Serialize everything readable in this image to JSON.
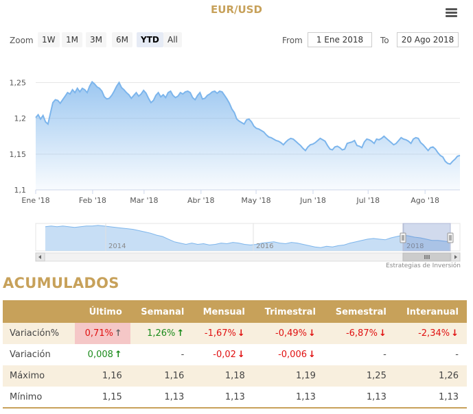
{
  "title": "EUR/USD",
  "icons": {
    "menu": "hamburger-menu-icon"
  },
  "zoom": {
    "label": "Zoom",
    "buttons": [
      {
        "label": "1W",
        "active": false
      },
      {
        "label": "1M",
        "active": false
      },
      {
        "label": "3M",
        "active": false
      },
      {
        "label": "6M",
        "active": false
      },
      {
        "label": "YTD",
        "active": true
      },
      {
        "label": "All",
        "active": false
      }
    ]
  },
  "range": {
    "from_label": "From",
    "from_value": "1 Ene 2018",
    "to_label": "To",
    "to_value": "20 Ago 2018"
  },
  "credit": "Estrategias de Inversión",
  "chart_data": {
    "type": "area",
    "series": [
      {
        "values": [
          1.201,
          1.205,
          1.199,
          1.204,
          1.195,
          1.192,
          1.207,
          1.222,
          1.226,
          1.225,
          1.221,
          1.226,
          1.231,
          1.236,
          1.234,
          1.24,
          1.236,
          1.242,
          1.237,
          1.242,
          1.24,
          1.236,
          1.245,
          1.251,
          1.248,
          1.244,
          1.242,
          1.238,
          1.23,
          1.227,
          1.228,
          1.232,
          1.238,
          1.245,
          1.25,
          1.243,
          1.24,
          1.236,
          1.233,
          1.228,
          1.232,
          1.236,
          1.231,
          1.234,
          1.239,
          1.235,
          1.228,
          1.222,
          1.225,
          1.232,
          1.236,
          1.23,
          1.233,
          1.229,
          1.236,
          1.238,
          1.232,
          1.229,
          1.231,
          1.236,
          1.234,
          1.237,
          1.238,
          1.236,
          1.229,
          1.226,
          1.232,
          1.236,
          1.227,
          1.228,
          1.232,
          1.234,
          1.237,
          1.238,
          1.235,
          1.238,
          1.237,
          1.232,
          1.227,
          1.221,
          1.213,
          1.208,
          1.199,
          1.196,
          1.194,
          1.192,
          1.198,
          1.199,
          1.195,
          1.189,
          1.186,
          1.185,
          1.183,
          1.181,
          1.177,
          1.174,
          1.173,
          1.171,
          1.169,
          1.168,
          1.166,
          1.163,
          1.167,
          1.17,
          1.172,
          1.171,
          1.168,
          1.165,
          1.162,
          1.158,
          1.155,
          1.16,
          1.163,
          1.164,
          1.166,
          1.169,
          1.172,
          1.17,
          1.168,
          1.162,
          1.157,
          1.156,
          1.16,
          1.161,
          1.159,
          1.156,
          1.157,
          1.165,
          1.166,
          1.167,
          1.169,
          1.162,
          1.161,
          1.159,
          1.167,
          1.171,
          1.17,
          1.168,
          1.165,
          1.171,
          1.17,
          1.172,
          1.175,
          1.172,
          1.169,
          1.166,
          1.163,
          1.165,
          1.169,
          1.173,
          1.171,
          1.17,
          1.168,
          1.165,
          1.171,
          1.173,
          1.172,
          1.166,
          1.163,
          1.159,
          1.155,
          1.159,
          1.16,
          1.157,
          1.152,
          1.148,
          1.146,
          1.14,
          1.137,
          1.136,
          1.14,
          1.143,
          1.147,
          1.148
        ]
      }
    ],
    "x_labels": [
      "Ene '18",
      "Feb '18",
      "Mar '18",
      "Abr '18",
      "May '18",
      "Jun '18",
      "Jul '18",
      "Ago '18"
    ],
    "y_ticks": [
      "1,1",
      "1,15",
      "1,2",
      "1,25"
    ],
    "ylim": [
      1.1,
      1.26
    ],
    "xlim": [
      "2018-01-01",
      "2018-08-20"
    ],
    "grid": true,
    "legend": "none"
  },
  "navigator": {
    "labels": [
      "2014",
      "2016",
      "2018"
    ],
    "values": [
      1.37,
      1.38,
      1.37,
      1.38,
      1.37,
      1.36,
      1.37,
      1.38,
      1.38,
      1.39,
      1.38,
      1.37,
      1.36,
      1.35,
      1.34,
      1.33,
      1.31,
      1.29,
      1.27,
      1.24,
      1.22,
      1.18,
      1.14,
      1.12,
      1.1,
      1.12,
      1.1,
      1.11,
      1.09,
      1.1,
      1.12,
      1.11,
      1.13,
      1.12,
      1.1,
      1.09,
      1.1,
      1.12,
      1.13,
      1.14,
      1.12,
      1.11,
      1.13,
      1.12,
      1.1,
      1.08,
      1.06,
      1.05,
      1.07,
      1.06,
      1.08,
      1.09,
      1.12,
      1.14,
      1.16,
      1.18,
      1.19,
      1.18,
      1.17,
      1.2,
      1.22,
      1.24,
      1.23,
      1.21,
      1.2,
      1.18,
      1.16,
      1.16,
      1.15,
      1.14
    ]
  },
  "accumulated": {
    "title": "ACUMULADOS",
    "headers": [
      "",
      "Último",
      "Semanal",
      "Mensual",
      "Trimestral",
      "Semestral",
      "Interanual"
    ],
    "rows": [
      {
        "label": "Variación%",
        "cells": [
          {
            "v": "0,71%",
            "arrow": "↑",
            "tone": "up-gray",
            "cls": "neg",
            "hl": true
          },
          {
            "v": "1,26%",
            "arrow": "↑",
            "tone": "up-g",
            "cls": "pos"
          },
          {
            "v": "-1,67%",
            "arrow": "↓",
            "tone": "down-r",
            "cls": "neg"
          },
          {
            "v": "-0,49%",
            "arrow": "↓",
            "tone": "down-r",
            "cls": "neg"
          },
          {
            "v": "-6,87%",
            "arrow": "↓",
            "tone": "down-r",
            "cls": "neg"
          },
          {
            "v": "-2,34%",
            "arrow": "↓",
            "tone": "down-r",
            "cls": "neg"
          }
        ]
      },
      {
        "label": "Variación",
        "cells": [
          {
            "v": "0,008",
            "arrow": "↑",
            "tone": "up-g",
            "cls": "pos"
          },
          {
            "v": "-",
            "arrow": "",
            "tone": "",
            "cls": ""
          },
          {
            "v": "-0,02",
            "arrow": "↓",
            "tone": "down-r",
            "cls": "neg"
          },
          {
            "v": "-0,006",
            "arrow": "↓",
            "tone": "down-r",
            "cls": "neg"
          },
          {
            "v": "-",
            "arrow": "",
            "tone": "",
            "cls": ""
          },
          {
            "v": "-",
            "arrow": "",
            "tone": "",
            "cls": ""
          }
        ]
      },
      {
        "label": "Máximo",
        "cells": [
          {
            "v": "1,16"
          },
          {
            "v": "1,16"
          },
          {
            "v": "1,18"
          },
          {
            "v": "1,19"
          },
          {
            "v": "1,25"
          },
          {
            "v": "1,26"
          }
        ]
      },
      {
        "label": "Mínimo",
        "cells": [
          {
            "v": "1,15"
          },
          {
            "v": "1,13"
          },
          {
            "v": "1,13"
          },
          {
            "v": "1,13"
          },
          {
            "v": "1,13"
          },
          {
            "v": "1,13"
          }
        ]
      }
    ]
  }
}
